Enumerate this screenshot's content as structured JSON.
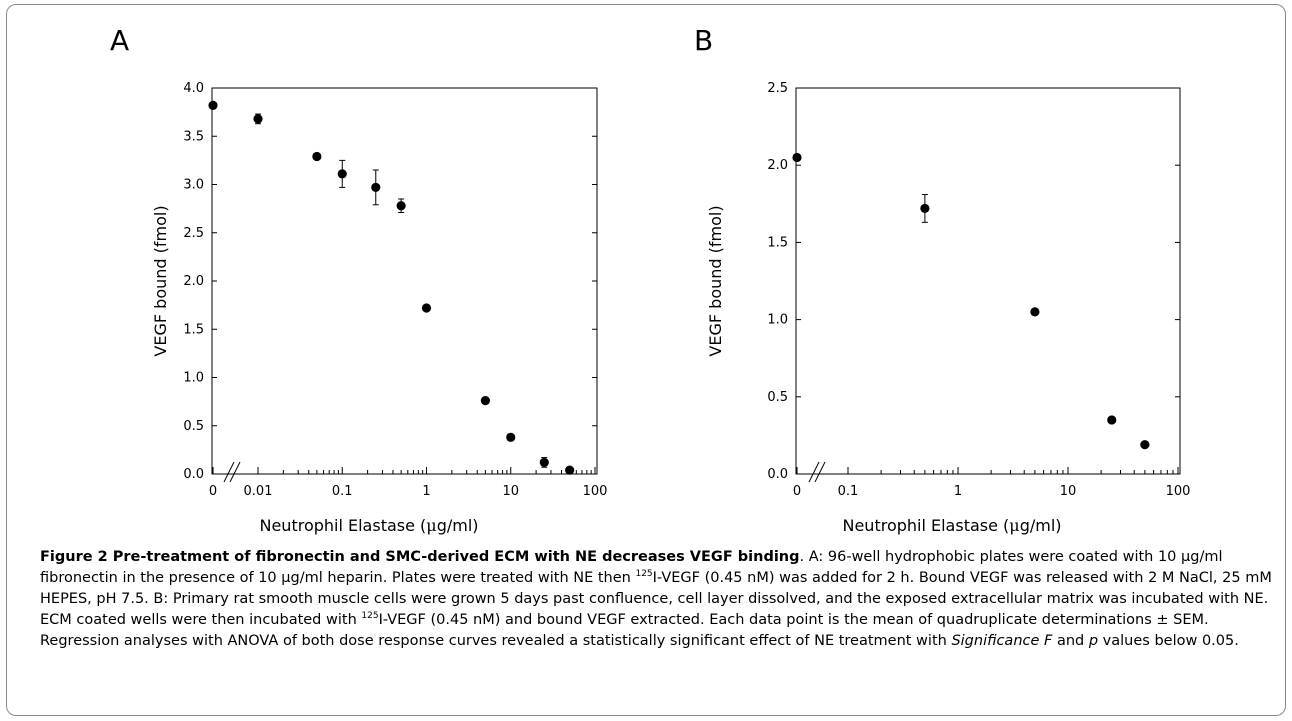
{
  "chart_data": [
    {
      "type": "scatter",
      "panel": "A",
      "xscale": "log",
      "xlabel_pre": "Neutrophil Elastase (",
      "xlabel_mu": "μ",
      "xlabel_post": "g/ml)",
      "ylabel": "VEGF bound (fmol)",
      "ylim": [
        0,
        4.0
      ],
      "yticks": [
        "0.0",
        "0.5",
        "1.0",
        "1.5",
        "2.0",
        "2.5",
        "3.0",
        "3.5",
        "4.0"
      ],
      "xticks": [
        "0",
        "0.01",
        "0.1",
        "1",
        "10",
        "100"
      ],
      "x": [
        0,
        0.01,
        0.05,
        0.1,
        0.25,
        0.5,
        1,
        5,
        10,
        25,
        50
      ],
      "y": [
        3.82,
        3.68,
        3.29,
        3.11,
        2.97,
        2.78,
        1.72,
        0.76,
        0.38,
        0.12,
        0.04
      ],
      "err": [
        0.03,
        0.05,
        0.04,
        0.14,
        0.18,
        0.07,
        0.02,
        0.02,
        0.02,
        0.05,
        0.02
      ]
    },
    {
      "type": "scatter",
      "panel": "B",
      "xscale": "log",
      "xlabel_pre": "Neutrophil Elastase (",
      "xlabel_mu": "μ",
      "xlabel_post": "g/ml)",
      "ylabel": "VEGF bound (fmol)",
      "ylim": [
        0,
        2.5
      ],
      "yticks": [
        "0.0",
        "0.5",
        "1.0",
        "1.5",
        "2.0",
        "2.5"
      ],
      "xticks": [
        "0",
        "0.1",
        "1",
        "10",
        "100"
      ],
      "x": [
        0,
        0.5,
        5,
        25,
        50
      ],
      "y": [
        2.05,
        1.72,
        1.05,
        0.35,
        0.19
      ],
      "err": [
        0.02,
        0.09,
        0.03,
        0.01,
        0.01
      ]
    }
  ],
  "caption": {
    "fig_label": "Figure 2",
    "bold_title": "Pre-treatment of fibronectin and SMC-derived ECM with NE decreases VEGF binding",
    "p1": ". A: 96-well hydrophobic plates were coated with 10 μg/ml fibronectin in the presence of 10 μg/ml heparin. Plates were treated with NE then ",
    "sup1": "125",
    "p2": "I-VEGF (0.45 nM) was added for 2 h. Bound VEGF was released with 2 M NaCl, 25 mM HEPES, pH 7.5. B: Primary rat smooth muscle cells were grown 5 days past confluence, cell layer dissolved, and the exposed extracellular matrix was incubated with NE. ECM coated wells were then incubated with ",
    "sup2": "125",
    "p3": "I-VEGF (0.45 nM) and bound VEGF extracted. Each data point is the mean of quadruplicate determinations ± SEM. Regression analyses with ANOVA of both dose response curves revealed a statistically significant effect of NE treatment with ",
    "italic1": "Significance F",
    "p4": " and ",
    "italic2": "p",
    "p5": " values below 0.05."
  },
  "colors": {
    "marker": "#000000",
    "frame": "#8a8a8a",
    "text": "#000000"
  }
}
